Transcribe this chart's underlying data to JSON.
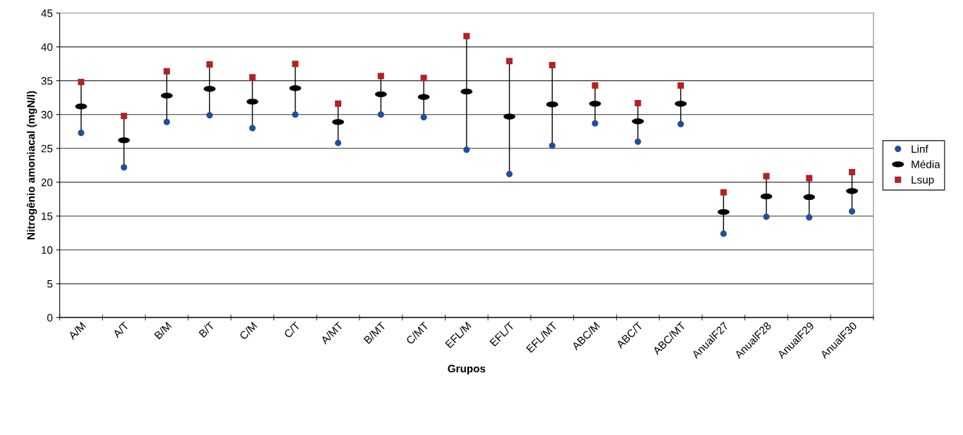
{
  "chart_data": {
    "type": "scatter",
    "xlabel": "Grupos",
    "ylabel": "Nitrogênio amoniacal (mgN/l)",
    "categories": [
      "A/M",
      "A/T",
      "B/M",
      "B/T",
      "C/M",
      "C/T",
      "A/MT",
      "B/MT",
      "C/MT",
      "EFL/M",
      "EFL/T",
      "EFL/MT",
      "ABC/M",
      "ABC/T",
      "ABC/MT",
      "AnualF27",
      "AnualF28",
      "AnualF29",
      "AnualF30"
    ],
    "series": [
      {
        "name": "Linf",
        "color": "#1f4e9a",
        "marker": "circle",
        "values": [
          27.3,
          22.2,
          28.9,
          29.9,
          28.0,
          30.0,
          25.8,
          30.0,
          29.6,
          24.8,
          21.2,
          25.4,
          28.7,
          26.0,
          28.6,
          12.4,
          14.9,
          14.8,
          15.7
        ]
      },
      {
        "name": "Média",
        "color": "#000000",
        "values": [
          31.2,
          26.2,
          32.8,
          33.8,
          31.9,
          33.9,
          28.9,
          33.0,
          32.6,
          33.4,
          29.7,
          31.5,
          31.6,
          29.0,
          31.6,
          15.6,
          17.9,
          17.8,
          18.7
        ]
      },
      {
        "name": "Lsup",
        "color": "#b22222",
        "marker": "square",
        "values": [
          34.8,
          29.8,
          36.4,
          37.4,
          35.5,
          37.5,
          31.6,
          35.7,
          35.4,
          41.6,
          37.9,
          37.3,
          34.3,
          31.7,
          34.3,
          18.5,
          20.9,
          20.6,
          21.5
        ]
      }
    ],
    "ylim": [
      0,
      45
    ],
    "yticks": [
      0,
      5,
      10,
      15,
      20,
      25,
      30,
      35,
      40,
      45
    ],
    "grid": "y",
    "legend": "right"
  }
}
